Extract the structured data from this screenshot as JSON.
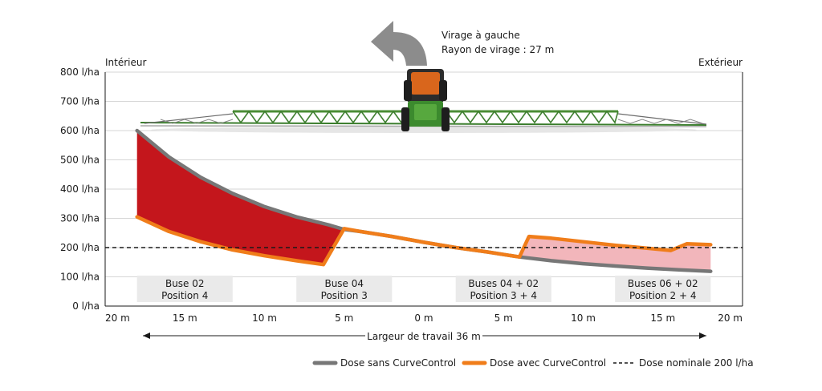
{
  "chart_data": {
    "type": "area",
    "title": "",
    "annotation": {
      "line1": "Virage à gauche",
      "line2": "Rayon de virage : 27 m"
    },
    "side_labels": {
      "left": "Intérieur",
      "right": "Extérieur"
    },
    "xlabel": "Largeur de travail 36 m",
    "xlim": [
      -20,
      20
    ],
    "ylim": [
      0,
      800
    ],
    "y_ticks": [
      "0 l/ha",
      "100 l/ha",
      "200 l/ha",
      "300 l/ha",
      "400 l/ha",
      "500 l/ha",
      "600 l/ha",
      "700 l/ha",
      "800 l/ha"
    ],
    "x_ticks": [
      "20 m",
      "15 m",
      "10 m",
      "5 m",
      "0 m",
      "5 m",
      "10 m",
      "15 m",
      "20 m"
    ],
    "grid": true,
    "sections": [
      {
        "line1": "Buse 02",
        "line2": "Position 4",
        "x_start": -18,
        "x_end": -12
      },
      {
        "line1": "Buse 04",
        "line2": "Position 3",
        "x_start": -8,
        "x_end": -2
      },
      {
        "line1": "Buses 04 + 02",
        "line2": "Position 3 + 4",
        "x_start": 2,
        "x_end": 8
      },
      {
        "line1": "Buses 06 + 02",
        "line2": "Position 2 + 4",
        "x_start": 12,
        "x_end": 18
      }
    ],
    "series": [
      {
        "name": "Dose sans CurveControl",
        "color": "#777777",
        "points": [
          [
            -18,
            600
          ],
          [
            -16,
            510
          ],
          [
            -14,
            440
          ],
          [
            -12,
            385
          ],
          [
            -10,
            340
          ],
          [
            -8,
            305
          ],
          [
            -6,
            278
          ],
          [
            -5,
            262
          ],
          [
            -4,
            255
          ],
          [
            -2,
            238
          ],
          [
            0,
            218
          ],
          [
            2,
            200
          ],
          [
            4,
            185
          ],
          [
            6,
            168
          ],
          [
            8,
            155
          ],
          [
            10,
            145
          ],
          [
            12,
            137
          ],
          [
            14,
            130
          ],
          [
            16,
            124
          ],
          [
            18,
            119
          ]
        ]
      },
      {
        "name": "Dose avec CurveControl",
        "color": "#f07d1a",
        "points": [
          [
            -18,
            305
          ],
          [
            -16,
            255
          ],
          [
            -14,
            220
          ],
          [
            -12,
            192
          ],
          [
            -10,
            172
          ],
          [
            -8,
            155
          ],
          [
            -6.3,
            142
          ],
          [
            -5,
            265
          ],
          [
            -4,
            255
          ],
          [
            -2,
            238
          ],
          [
            0,
            218
          ],
          [
            2,
            200
          ],
          [
            4,
            185
          ],
          [
            6,
            168
          ],
          [
            6.6,
            238
          ],
          [
            8,
            232
          ],
          [
            10,
            220
          ],
          [
            12,
            208
          ],
          [
            14,
            198
          ],
          [
            15.5,
            190
          ],
          [
            16.5,
            213
          ],
          [
            18,
            210
          ]
        ]
      },
      {
        "name": "Dose nominale 200 l/ha",
        "color": "#1a1a1a",
        "constant": 200
      }
    ],
    "fills": {
      "under_dose": "#c4161c",
      "over_dose": "#f2b6bb"
    }
  }
}
